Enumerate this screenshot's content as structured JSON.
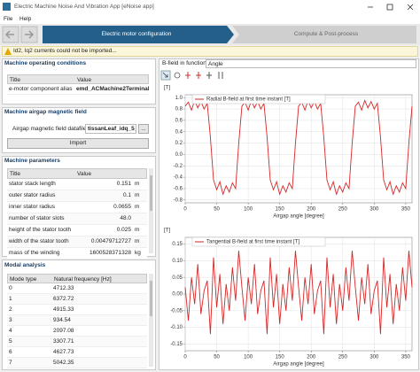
{
  "window": {
    "title": "Electric Machine Noise And Vibration App [eNoise app]",
    "menu": [
      "File",
      "Help"
    ]
  },
  "steps": [
    "Electric motor configuration",
    "Compute & Post-process"
  ],
  "warning": "Id2, Iq2 currents could not be imported...",
  "operating_conditions": {
    "title": "Machine operating conditions",
    "columns": [
      "Title",
      "Value"
    ],
    "rows": [
      [
        "e-motor component alias",
        "emd_ACMachine2Terminals"
      ]
    ]
  },
  "airgap_field": {
    "title": "Machine airgap magnetic field",
    "label": "Airgap magnetic field datafile",
    "file": "tissanLeaf_idq_5_7.mat",
    "browse": "...",
    "button": "Import"
  },
  "machine_parameters": {
    "title": "Machine parameters",
    "columns": [
      "Title",
      "Value"
    ],
    "rows": [
      [
        "stator stack length",
        "0.151",
        "m"
      ],
      [
        "outer stator radius",
        "0.1",
        "m"
      ],
      [
        "inner stator radius",
        "0.0655",
        "m"
      ],
      [
        "number of stator slots",
        "48.0"
      ],
      [
        "height of the stator tooth",
        "0.025",
        "m"
      ],
      [
        "width of the stator tooth",
        "0.00479712727",
        "m"
      ],
      [
        "mass of the winding",
        "1600528371328",
        "kg"
      ]
    ]
  },
  "modal_analysis": {
    "title": "Modal analysis",
    "columns": [
      "Mode type",
      "Natural frequency [Hz]"
    ],
    "rows": [
      [
        "0",
        "4712.33"
      ],
      [
        "1",
        "6372.72"
      ],
      [
        "2",
        "4915.33"
      ],
      [
        "3",
        "934.54"
      ],
      [
        "4",
        "2097.08"
      ],
      [
        "5",
        "3307.71"
      ],
      [
        "6",
        "4627.73"
      ],
      [
        "7",
        "5042.35"
      ]
    ]
  },
  "field_selector": {
    "label": "B-field in function of:",
    "value": "Angle"
  },
  "chart_data": [
    {
      "type": "line",
      "ylabel": "[T]",
      "xlabel": "Airgap angle [degree]",
      "x": [
        0,
        5,
        10,
        15,
        20,
        25,
        30,
        35,
        40,
        45,
        50,
        55,
        60,
        65,
        70,
        75,
        80,
        85,
        90,
        95,
        100,
        105,
        110,
        115,
        120,
        125,
        130,
        135,
        140,
        145,
        150,
        155,
        160,
        165,
        170,
        175,
        180,
        185,
        190,
        195,
        200,
        205,
        210,
        215,
        220,
        225,
        230,
        235,
        240,
        245,
        250,
        255,
        260,
        265,
        270,
        275,
        280,
        285,
        290,
        295,
        300,
        305,
        310,
        315,
        320,
        325,
        330,
        335,
        340,
        345,
        350,
        355,
        360
      ],
      "series": [
        {
          "name": "Radial B-field at first time instant [T]",
          "color": "#d62728",
          "values": [
            0.85,
            0.92,
            0.78,
            0.95,
            0.82,
            0.93,
            0.8,
            0.9,
            0.3,
            -0.45,
            -0.62,
            -0.48,
            -0.7,
            -0.55,
            -0.66,
            -0.5,
            -0.6,
            0.2,
            0.85,
            0.92,
            0.78,
            0.95,
            0.82,
            0.93,
            0.8,
            0.9,
            0.3,
            -0.45,
            -0.62,
            -0.48,
            -0.7,
            -0.55,
            -0.66,
            -0.5,
            -0.6,
            0.2,
            0.85,
            0.92,
            0.78,
            0.95,
            0.82,
            0.93,
            0.8,
            0.9,
            0.3,
            -0.45,
            -0.62,
            -0.48,
            -0.7,
            -0.55,
            -0.66,
            -0.5,
            -0.6,
            0.2,
            0.85,
            0.92,
            0.78,
            0.95,
            0.82,
            0.93,
            0.8,
            0.9,
            0.3,
            -0.45,
            -0.62,
            -0.48,
            -0.7,
            -0.55,
            -0.66,
            -0.5,
            -0.6,
            0.2,
            0.85
          ]
        }
      ],
      "xlim": [
        0,
        360
      ],
      "xticks": [
        0,
        50,
        100,
        150,
        200,
        250,
        300,
        350
      ],
      "ylim": [
        -0.85,
        1.05
      ],
      "yticks": [
        -0.8,
        -0.6,
        -0.4,
        -0.2,
        {
          "value": 0,
          "label": "0.0"
        },
        0.2,
        0.4,
        0.6,
        0.8,
        {
          "value": 1,
          "label": "1.0"
        }
      ],
      "grid": true
    },
    {
      "type": "line",
      "ylabel": "[T]",
      "xlabel": "Airgap angle [degree]",
      "x": [
        0,
        5,
        10,
        15,
        20,
        25,
        30,
        35,
        40,
        45,
        50,
        55,
        60,
        65,
        70,
        75,
        80,
        85,
        90,
        95,
        100,
        105,
        110,
        115,
        120,
        125,
        130,
        135,
        140,
        145,
        150,
        155,
        160,
        165,
        170,
        175,
        180,
        185,
        190,
        195,
        200,
        205,
        210,
        215,
        220,
        225,
        230,
        235,
        240,
        245,
        250,
        255,
        260,
        265,
        270,
        275,
        280,
        285,
        290,
        295,
        300,
        305,
        310,
        315,
        320,
        325,
        330,
        335,
        340,
        345,
        350,
        355,
        360
      ],
      "series": [
        {
          "name": "Tangential B-field at first time instant [T]",
          "color": "#d62728",
          "values": [
            0.02,
            -0.08,
            0.05,
            -0.03,
            0.09,
            -0.06,
            0.01,
            0.04,
            -0.12,
            0.11,
            -0.04,
            0.06,
            -0.09,
            0.03,
            -0.05,
            0.08,
            -0.02,
            0.13,
            0.02,
            -0.08,
            0.05,
            -0.03,
            0.09,
            -0.06,
            0.01,
            0.04,
            -0.12,
            0.11,
            -0.04,
            0.06,
            -0.09,
            0.03,
            -0.05,
            0.08,
            -0.02,
            0.13,
            0.02,
            -0.08,
            0.05,
            -0.03,
            0.09,
            -0.06,
            0.01,
            0.04,
            -0.12,
            0.11,
            -0.04,
            0.06,
            -0.09,
            0.03,
            -0.05,
            0.08,
            -0.02,
            0.13,
            0.02,
            -0.08,
            0.05,
            -0.03,
            0.09,
            -0.06,
            0.01,
            0.04,
            -0.12,
            0.11,
            -0.04,
            0.06,
            -0.09,
            0.03,
            -0.05,
            0.08,
            -0.02,
            0.13,
            0.02
          ]
        }
      ],
      "xlim": [
        0,
        360
      ],
      "xticks": [
        0,
        50,
        100,
        150,
        200,
        250,
        300,
        350
      ],
      "ylim": [
        -0.17,
        0.17
      ],
      "yticks": [
        -0.15,
        {
          "value": -0.1,
          "label": "-0.10"
        },
        -0.05,
        {
          "value": 0,
          "label": "0.00"
        },
        0.05,
        {
          "value": 0.1,
          "label": "0.10"
        },
        0.15
      ],
      "grid": true
    }
  ]
}
